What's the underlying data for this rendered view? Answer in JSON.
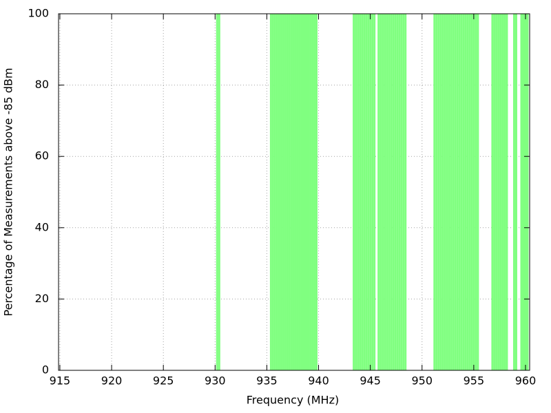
{
  "chart_data": {
    "type": "bar",
    "x_label": "Frequency (MHz)",
    "y_label": "Percentage of Measurements above -85 dBm",
    "x": [
      930.2,
      930.4,
      935.4,
      935.6,
      935.8,
      936.0,
      936.2,
      936.4,
      936.6,
      936.8,
      937.0,
      937.2,
      937.4,
      937.6,
      937.8,
      938.0,
      938.2,
      938.4,
      938.6,
      938.8,
      939.0,
      939.2,
      939.4,
      939.6,
      939.8,
      943.4,
      943.6,
      943.8,
      944.0,
      944.2,
      944.4,
      944.6,
      944.8,
      945.0,
      945.2,
      945.4,
      945.8,
      946.0,
      946.2,
      946.4,
      946.6,
      946.8,
      947.0,
      947.2,
      947.4,
      947.6,
      947.8,
      948.0,
      948.2,
      948.4,
      951.2,
      951.4,
      951.6,
      951.8,
      952.0,
      952.2,
      952.4,
      952.6,
      952.8,
      953.0,
      953.2,
      953.4,
      953.6,
      953.8,
      954.0,
      954.2,
      954.4,
      954.6,
      954.8,
      955.0,
      955.2,
      955.4,
      956.8,
      957.0,
      957.2,
      957.4,
      957.6,
      957.8,
      958.0,
      958.2,
      958.9,
      959.1,
      959.6,
      959.8,
      960.0,
      960.2
    ],
    "values": [
      100,
      100,
      100,
      100,
      100,
      100,
      100,
      100,
      100,
      100,
      100,
      100,
      100,
      100,
      100,
      100,
      100,
      100,
      100,
      100,
      100,
      100,
      100,
      100,
      100,
      100,
      100,
      100,
      100,
      100,
      100,
      100,
      100,
      100,
      100,
      100,
      100,
      100,
      100,
      100,
      100,
      100,
      100,
      100,
      100,
      100,
      100,
      100,
      100,
      100,
      100,
      100,
      100,
      100,
      100,
      100,
      100,
      100,
      100,
      100,
      100,
      100,
      100,
      100,
      100,
      100,
      100,
      100,
      100,
      100,
      100,
      100,
      100,
      100,
      100,
      100,
      100,
      100,
      100,
      100,
      100,
      100,
      100,
      100,
      100,
      100
    ],
    "bar_width": 0.2,
    "color": "#80ff80",
    "xlim": [
      914.87,
      960.4
    ],
    "ylim": [
      0,
      100
    ],
    "xticks": [
      915,
      920,
      925,
      930,
      935,
      940,
      945,
      950,
      955,
      960
    ],
    "yticks": [
      0,
      20,
      40,
      60,
      80,
      100
    ],
    "grid": true
  }
}
